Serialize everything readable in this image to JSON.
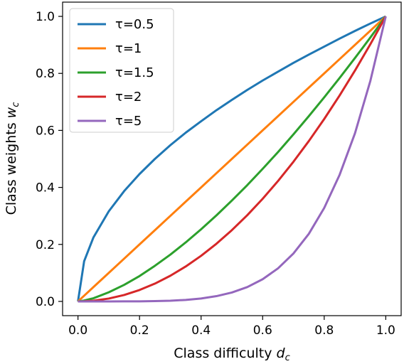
{
  "chart_data": {
    "type": "line",
    "title": "",
    "xlabel": {
      "base": "Class difficulty ",
      "var": "d",
      "sub": "c"
    },
    "ylabel": {
      "base": "Class weights ",
      "var": "w",
      "sub": "c"
    },
    "xlim": [
      -0.05,
      1.05
    ],
    "ylim": [
      -0.05,
      1.05
    ],
    "xticks": [
      0.0,
      0.2,
      0.4,
      0.6,
      0.8,
      1.0
    ],
    "yticks": [
      0.0,
      0.2,
      0.4,
      0.6,
      0.8,
      1.0
    ],
    "xtick_labels": [
      "0.0",
      "0.2",
      "0.4",
      "0.6",
      "0.8",
      "1.0"
    ],
    "ytick_labels": [
      "0.0",
      "0.2",
      "0.4",
      "0.6",
      "0.8",
      "1.0"
    ],
    "grid": false,
    "legend_position": "top-left",
    "x": [
      0.0,
      0.02,
      0.05,
      0.1,
      0.15,
      0.2,
      0.25,
      0.3,
      0.35,
      0.4,
      0.45,
      0.5,
      0.55,
      0.6,
      0.65,
      0.7,
      0.75,
      0.8,
      0.85,
      0.9,
      0.95,
      1.0
    ],
    "series": [
      {
        "name": "τ=0.5",
        "color": "#1f77b4",
        "values": [
          0.0,
          0.141,
          0.224,
          0.316,
          0.387,
          0.447,
          0.5,
          0.548,
          0.592,
          0.632,
          0.671,
          0.707,
          0.742,
          0.775,
          0.806,
          0.837,
          0.866,
          0.894,
          0.922,
          0.949,
          0.975,
          1.0
        ]
      },
      {
        "name": "τ=1",
        "color": "#ff7f0e",
        "values": [
          0.0,
          0.02,
          0.05,
          0.1,
          0.15,
          0.2,
          0.25,
          0.3,
          0.35,
          0.4,
          0.45,
          0.5,
          0.55,
          0.6,
          0.65,
          0.7,
          0.75,
          0.8,
          0.85,
          0.9,
          0.95,
          1.0
        ]
      },
      {
        "name": "τ=1.5",
        "color": "#2ca02c",
        "values": [
          0.0,
          0.003,
          0.011,
          0.032,
          0.058,
          0.089,
          0.125,
          0.164,
          0.207,
          0.253,
          0.302,
          0.354,
          0.408,
          0.465,
          0.524,
          0.586,
          0.65,
          0.716,
          0.784,
          0.854,
          0.926,
          1.0
        ]
      },
      {
        "name": "τ=2",
        "color": "#d62728",
        "values": [
          0.0,
          0.0004,
          0.0025,
          0.01,
          0.0225,
          0.04,
          0.0625,
          0.09,
          0.1225,
          0.16,
          0.2025,
          0.25,
          0.3025,
          0.36,
          0.4225,
          0.49,
          0.5625,
          0.64,
          0.7225,
          0.81,
          0.9025,
          1.0
        ]
      },
      {
        "name": "τ=5",
        "color": "#9467bd",
        "values": [
          0.0,
          0.0,
          0.0,
          1e-05,
          8e-05,
          0.00032,
          0.001,
          0.0024,
          0.0053,
          0.0102,
          0.0185,
          0.0313,
          0.0503,
          0.0778,
          0.116,
          0.168,
          0.237,
          0.328,
          0.444,
          0.59,
          0.774,
          1.0
        ]
      }
    ]
  }
}
